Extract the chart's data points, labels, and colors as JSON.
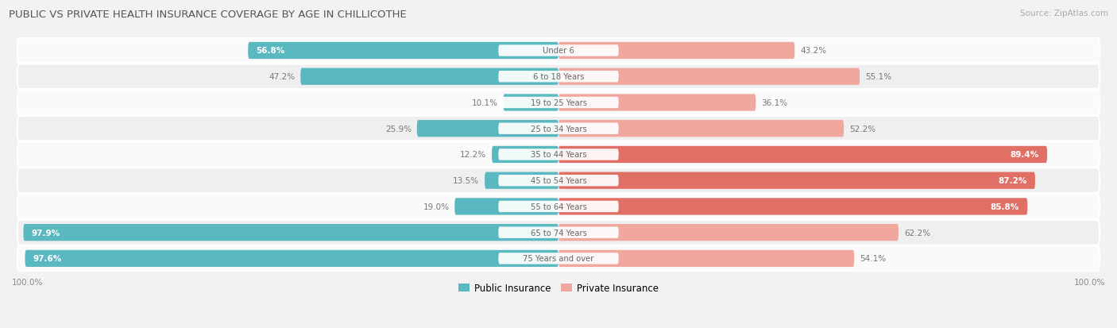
{
  "title": "PUBLIC VS PRIVATE HEALTH INSURANCE COVERAGE BY AGE IN CHILLICOTHE",
  "source": "Source: ZipAtlas.com",
  "categories": [
    "Under 6",
    "6 to 18 Years",
    "19 to 25 Years",
    "25 to 34 Years",
    "35 to 44 Years",
    "45 to 54 Years",
    "55 to 64 Years",
    "65 to 74 Years",
    "75 Years and over"
  ],
  "public_values": [
    56.8,
    47.2,
    10.1,
    25.9,
    12.2,
    13.5,
    19.0,
    97.9,
    97.6
  ],
  "private_values": [
    43.2,
    55.1,
    36.1,
    52.2,
    89.4,
    87.2,
    85.8,
    62.2,
    54.1
  ],
  "public_color": "#5ab8c0",
  "private_color_strong": "#e07065",
  "private_color_light": "#f0a89e",
  "bg_color": "#f2f2f2",
  "row_bg_light": "#fafafa",
  "row_bg_dark": "#efefef",
  "max_value": 100.0,
  "legend_public": "Public Insurance",
  "legend_private": "Private Insurance",
  "title_color": "#555555",
  "source_color": "#aaaaaa",
  "label_color_dark": "#777777",
  "label_color_white": "#ffffff",
  "bottom_label": "100.0%"
}
